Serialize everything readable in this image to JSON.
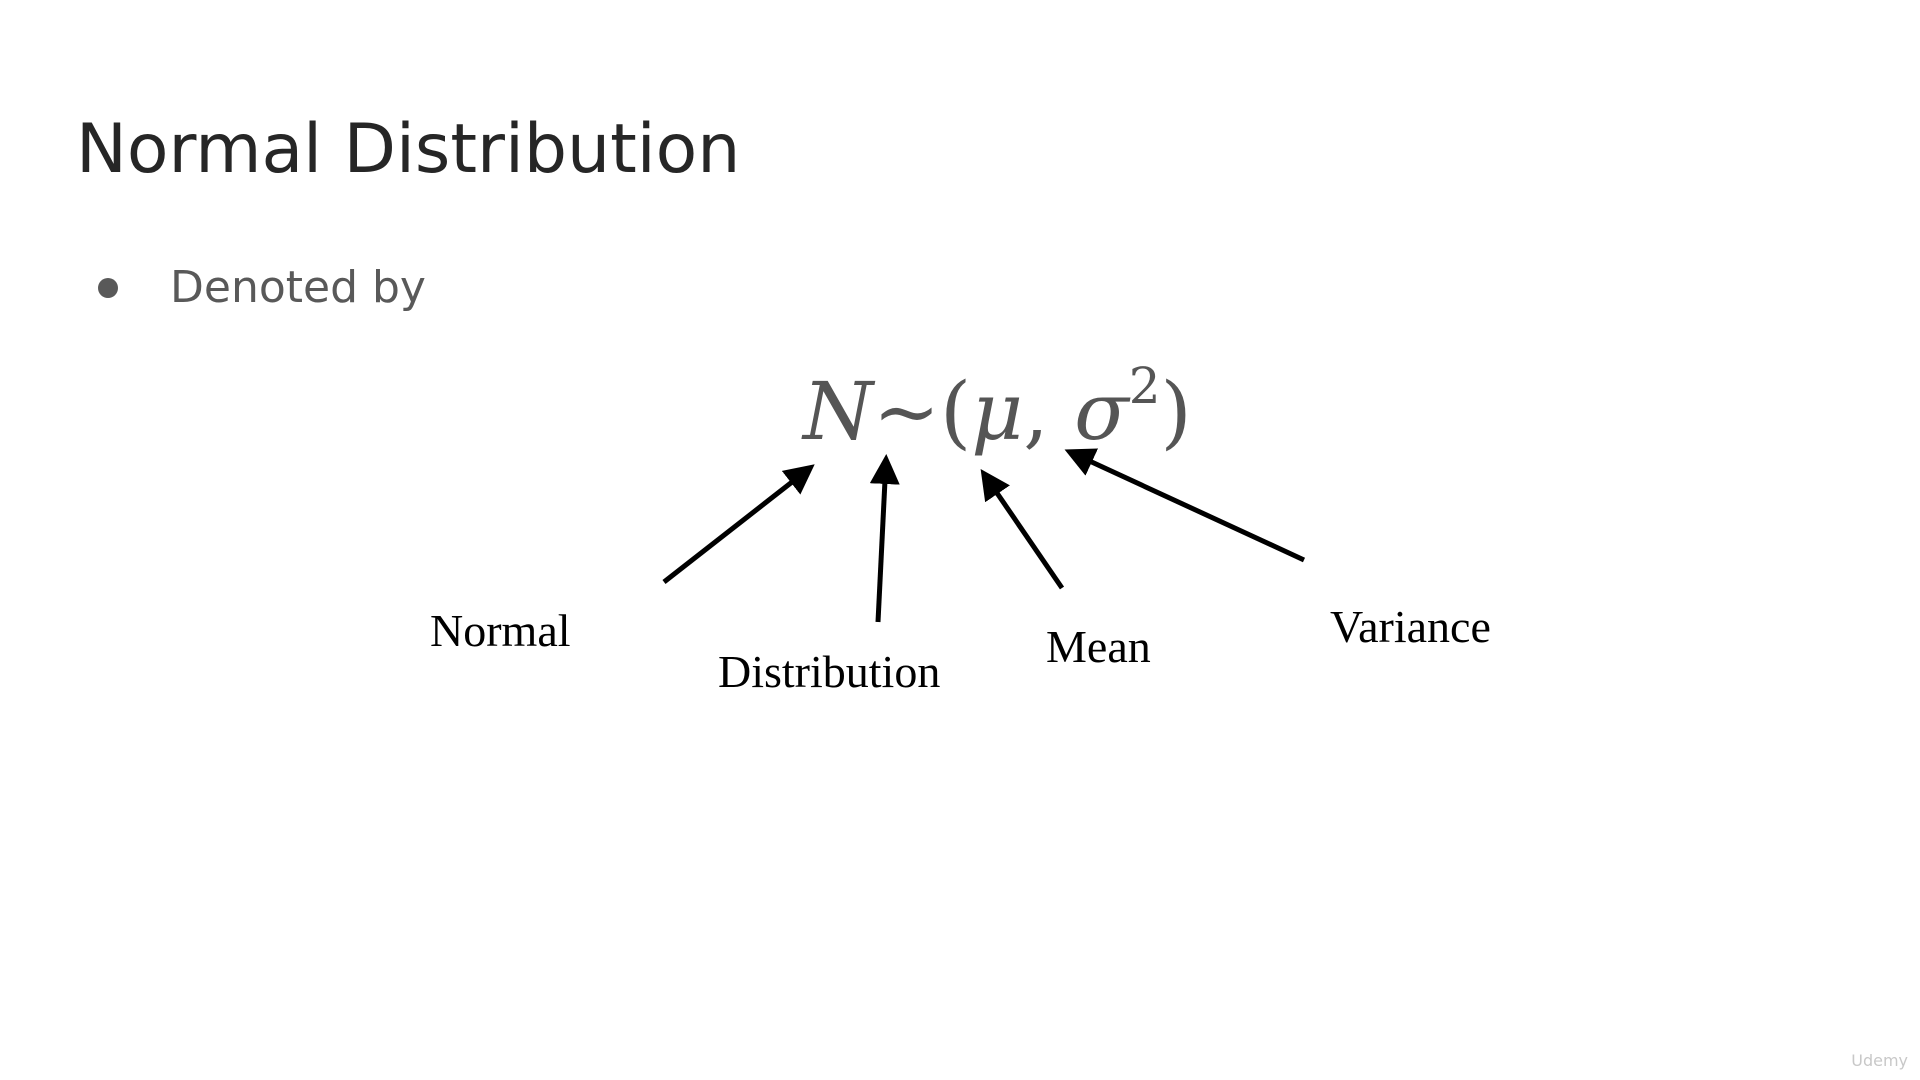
{
  "slide": {
    "title": "Normal Distribution",
    "bullet": "Denoted by"
  },
  "formula": {
    "n": "N",
    "tilde": "~",
    "open_paren": "(",
    "mu": "μ",
    "comma": ",",
    "sigma": "σ",
    "exponent": "2",
    "close_paren": ")"
  },
  "labels": {
    "normal": "Normal",
    "distribution": "Distribution",
    "mean": "Mean",
    "variance": "Variance"
  },
  "watermark": "Udemy",
  "colors": {
    "title": "#262626",
    "bullet": "#595959",
    "formula": "#555555",
    "arrows": "#000000"
  }
}
